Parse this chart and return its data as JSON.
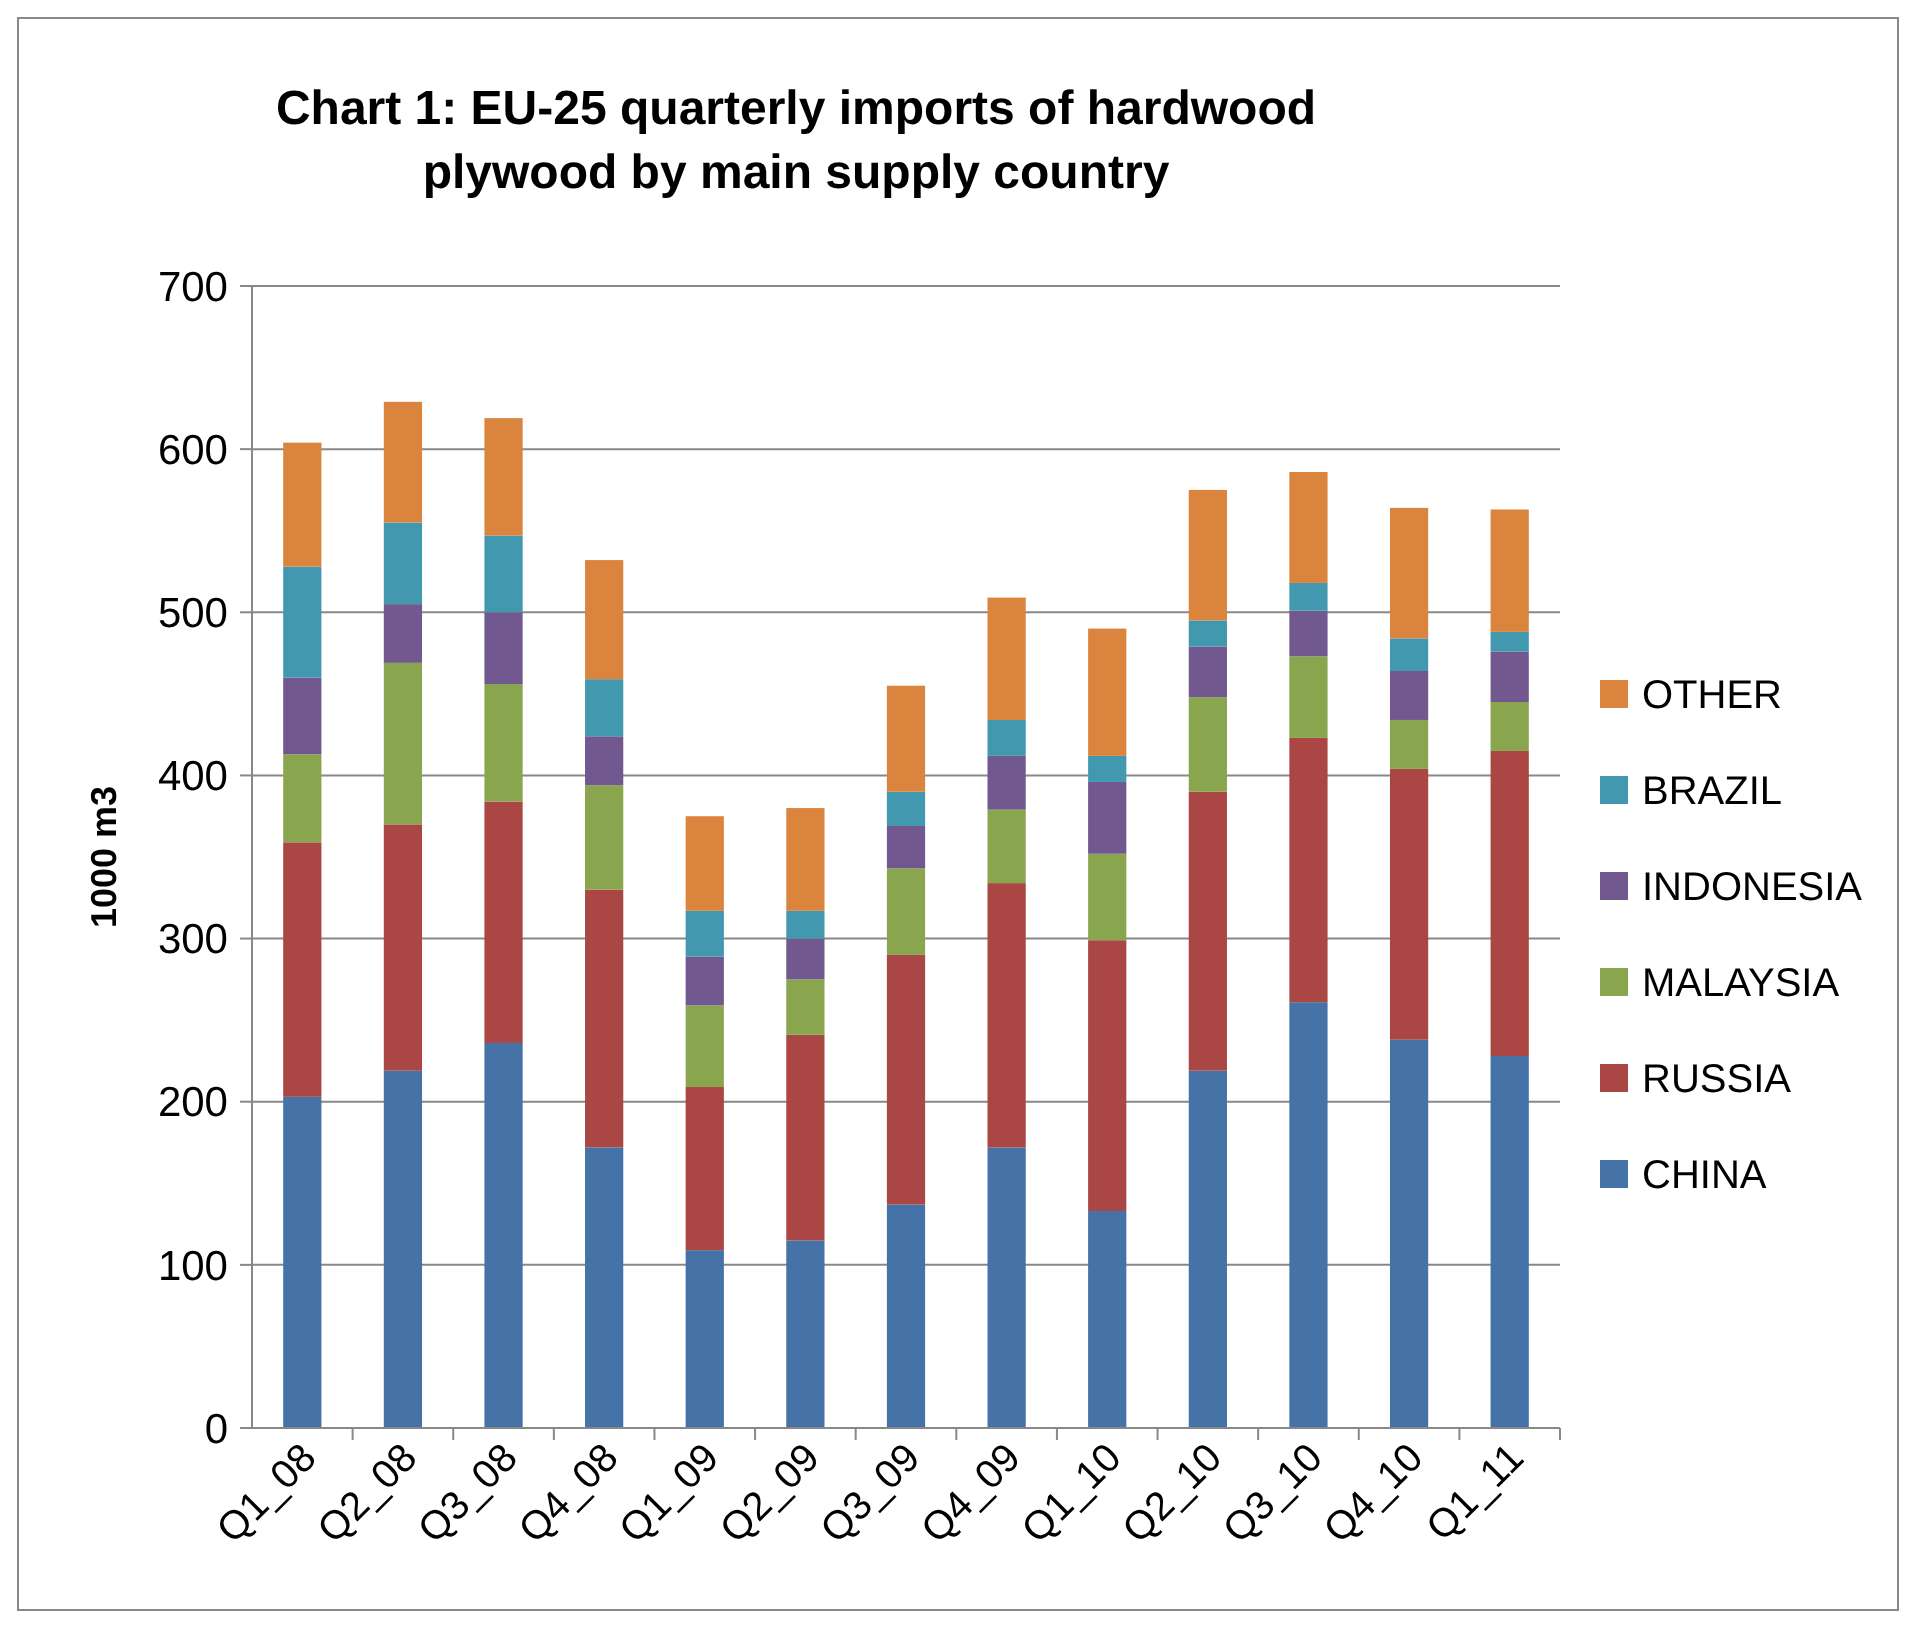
{
  "chart_data": {
    "type": "bar",
    "stacked": true,
    "title": "Chart 1: EU-25 quarterly imports of hardwood plywood by main supply country",
    "ylabel": "1000 m3",
    "categories": [
      "Q1_08",
      "Q2_08",
      "Q3_08",
      "Q4_08",
      "Q1_09",
      "Q2_09",
      "Q3_09",
      "Q4_09",
      "Q1_10",
      "Q2_10",
      "Q3_10",
      "Q4_10",
      "Q1_11"
    ],
    "series": [
      {
        "name": "CHINA",
        "color": "#4572a7",
        "values": [
          203,
          219,
          236,
          172,
          109,
          115,
          137,
          172,
          133,
          219,
          261,
          238,
          228
        ]
      },
      {
        "name": "RUSSIA",
        "color": "#aa4643",
        "values": [
          156,
          151,
          148,
          158,
          100,
          126,
          153,
          162,
          166,
          171,
          162,
          166,
          187
        ]
      },
      {
        "name": "MALAYSIA",
        "color": "#89a54e",
        "values": [
          54,
          99,
          72,
          64,
          50,
          34,
          53,
          45,
          53,
          58,
          50,
          30,
          30
        ]
      },
      {
        "name": "INDONESIA",
        "color": "#71588f",
        "values": [
          47,
          36,
          44,
          30,
          30,
          25,
          26,
          33,
          44,
          31,
          28,
          30,
          31
        ]
      },
      {
        "name": "BRAZIL",
        "color": "#4198af",
        "values": [
          68,
          50,
          47,
          35,
          28,
          17,
          21,
          22,
          16,
          16,
          17,
          20,
          12
        ]
      },
      {
        "name": "OTHER",
        "color": "#db843d",
        "values": [
          76,
          74,
          72,
          73,
          58,
          63,
          65,
          75,
          78,
          80,
          68,
          80,
          75
        ]
      }
    ],
    "ylim": [
      0,
      700
    ],
    "yticks": [
      0,
      100,
      200,
      300,
      400,
      500,
      600,
      700
    ],
    "grid": "y",
    "legend": "right"
  }
}
